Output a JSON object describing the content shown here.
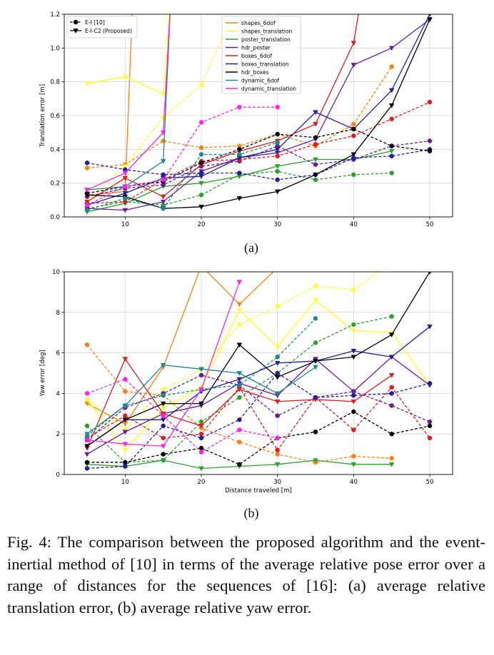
{
  "caption": "Fig. 4: The comparison between the proposed algorithm and the event-inertial method of [10] in terms of the average relative pose error over a range of distances for the sequences of [16]: (a) average relative translation error, (b) average relative yaw error.",
  "colors": {
    "shapes_6dof": "#ff7f0e",
    "shapes_translation": "#ffff33",
    "poster_translation": "#2ca02c",
    "hdr_poster": "#6a1b9a",
    "boxes_6dof": "#e41a1c",
    "boxes_translation": "#1f1f9f",
    "hdr_boxes": "#000000",
    "dynamic_6dof": "#1a8a8a",
    "dynamic_translation": "#ff22ee"
  },
  "chart_data": [
    {
      "id": "a",
      "type": "line",
      "sub_label": "(a)",
      "xlabel": "",
      "ylabel": "Translation error [m]",
      "xlim": [
        2,
        53
      ],
      "ylim": [
        0,
        1.2
      ],
      "xticks": [
        10,
        20,
        30,
        40,
        50
      ],
      "yticks": [
        0.0,
        0.2,
        0.4,
        0.6,
        0.8,
        1.0,
        1.2
      ],
      "grid": true,
      "method_legend": [
        "E-I [10]",
        "E-I-C2 (Proposed)"
      ],
      "sequence_legend": [
        "shapes_6dof",
        "shapes_translation",
        "poster_translation",
        "hdr_poster",
        "boxes_6dof",
        "boxes_translation",
        "hdr_boxes",
        "dynamic_6dof",
        "dynamic_translation"
      ],
      "series": [
        {
          "seq": "shapes_6dof",
          "method": "E-I [10]",
          "x": [
            5,
            10,
            15,
            20,
            25,
            30,
            35,
            40,
            45
          ],
          "y": [
            0.29,
            0.31,
            0.45,
            0.41,
            0.42,
            0.49,
            0.42,
            0.55,
            0.89
          ]
        },
        {
          "seq": "shapes_6dof",
          "method": "E-I-C2 (Proposed)",
          "x": [
            5,
            10,
            11
          ],
          "y": [
            0.13,
            0.15,
            1.3
          ]
        },
        {
          "seq": "shapes_translation",
          "method": "E-I [10]",
          "x": [
            5,
            10,
            15,
            20,
            25,
            30
          ],
          "y": [
            0.09,
            0.3,
            0.59,
            0.78,
            1.3,
            1.3
          ]
        },
        {
          "seq": "shapes_translation",
          "method": "E-I-C2 (Proposed)",
          "x": [
            5,
            10,
            15,
            16
          ],
          "y": [
            0.79,
            0.83,
            0.73,
            1.3
          ]
        },
        {
          "seq": "poster_translation",
          "method": "E-I [10]",
          "x": [
            5,
            10,
            15,
            20,
            25,
            30,
            35,
            40,
            45
          ],
          "y": [
            0.05,
            0.09,
            0.07,
            0.13,
            0.25,
            0.27,
            0.22,
            0.25,
            0.26
          ]
        },
        {
          "seq": "poster_translation",
          "method": "E-I-C2 (Proposed)",
          "x": [
            5,
            10,
            15,
            20,
            25,
            30,
            35,
            40,
            45
          ],
          "y": [
            0.03,
            0.08,
            0.18,
            0.2,
            0.24,
            0.3,
            0.34,
            0.34,
            0.39
          ]
        },
        {
          "seq": "hdr_poster",
          "method": "E-I [10]",
          "x": [
            5,
            10,
            15,
            20,
            25,
            30,
            35,
            40,
            45,
            50
          ],
          "y": [
            0.12,
            0.17,
            0.19,
            0.3,
            0.33,
            0.42,
            0.31,
            0.34,
            0.42,
            0.45
          ]
        },
        {
          "seq": "hdr_poster",
          "method": "E-I-C2 (Proposed)",
          "x": [
            5,
            10,
            15,
            20,
            25,
            30,
            35,
            40,
            45,
            50
          ],
          "y": [
            0.05,
            0.04,
            0.09,
            0.27,
            0.35,
            0.38,
            0.46,
            0.9,
            1.0,
            1.17
          ]
        },
        {
          "seq": "boxes_6dof",
          "method": "E-I [10]",
          "x": [
            5,
            10,
            15,
            20,
            25,
            30,
            35,
            40,
            45,
            50
          ],
          "y": [
            0.08,
            0.09,
            0.22,
            0.33,
            0.34,
            0.36,
            0.43,
            0.48,
            0.58,
            0.68
          ]
        },
        {
          "seq": "boxes_6dof",
          "method": "E-I-C2 (Proposed)",
          "x": [
            5,
            10,
            15,
            20,
            25,
            30,
            35,
            40,
            41
          ],
          "y": [
            0.09,
            0.23,
            0.12,
            0.31,
            0.39,
            0.45,
            0.55,
            1.03,
            1.3
          ]
        },
        {
          "seq": "boxes_translation",
          "method": "E-I [10]",
          "x": [
            5,
            10,
            15,
            20,
            25,
            30,
            35,
            40,
            45,
            50
          ],
          "y": [
            0.32,
            0.28,
            0.25,
            0.26,
            0.26,
            0.22,
            0.25,
            0.35,
            0.36,
            0.4
          ]
        },
        {
          "seq": "boxes_translation",
          "method": "E-I-C2 (Proposed)",
          "x": [
            5,
            10,
            15,
            20,
            25,
            30,
            35,
            40,
            45,
            50,
            51
          ],
          "y": [
            0.07,
            0.14,
            0.23,
            0.24,
            0.35,
            0.4,
            0.62,
            0.52,
            0.75,
            1.2,
            1.3
          ]
        },
        {
          "seq": "hdr_boxes",
          "method": "E-I [10]",
          "x": [
            5,
            10,
            15,
            20,
            25,
            30,
            35,
            40,
            45,
            50
          ],
          "y": [
            0.14,
            0.18,
            0.21,
            0.32,
            0.4,
            0.49,
            0.47,
            0.52,
            0.42,
            0.39
          ]
        },
        {
          "seq": "hdr_boxes",
          "method": "E-I-C2 (Proposed)",
          "x": [
            5,
            10,
            15,
            20,
            25,
            30,
            35,
            40,
            45,
            50
          ],
          "y": [
            0.13,
            0.12,
            0.05,
            0.06,
            0.11,
            0.15,
            0.25,
            0.37,
            0.66,
            1.17
          ]
        },
        {
          "seq": "dynamic_6dof",
          "method": "E-I [10]",
          "x": [
            5,
            10,
            15,
            20,
            25,
            30
          ],
          "y": [
            0.04,
            0.11,
            0.05,
            0.37,
            0.37,
            0.44
          ]
        },
        {
          "seq": "dynamic_6dof",
          "method": "E-I-C2 (Proposed)",
          "x": [
            5,
            10,
            15,
            16
          ],
          "y": [
            0.16,
            0.18,
            0.33,
            1.3
          ]
        },
        {
          "seq": "dynamic_translation",
          "method": "E-I [10]",
          "x": [
            5,
            10,
            15,
            20,
            25,
            30
          ],
          "y": [
            0.07,
            0.18,
            0.22,
            0.56,
            0.65,
            0.65
          ]
        },
        {
          "seq": "dynamic_translation",
          "method": "E-I-C2 (Proposed)",
          "x": [
            5,
            10,
            15,
            16
          ],
          "y": [
            0.16,
            0.26,
            0.5,
            1.3
          ]
        }
      ]
    },
    {
      "id": "b",
      "type": "line",
      "sub_label": "(b)",
      "xlabel": "Distance traveled [m]",
      "ylabel": "Yaw error [deg]",
      "xlim": [
        2,
        53
      ],
      "ylim": [
        0,
        10
      ],
      "xticks": [
        10,
        20,
        30,
        40,
        50
      ],
      "yticks": [
        0,
        2,
        4,
        6,
        8,
        10
      ],
      "grid": true,
      "series": [
        {
          "seq": "shapes_6dof",
          "method": "E-I [10]",
          "x": [
            5,
            10,
            15,
            20,
            25,
            30,
            35,
            40,
            45
          ],
          "y": [
            6.4,
            4.1,
            3.9,
            2.3,
            1.6,
            1.0,
            0.6,
            0.9,
            0.8
          ]
        },
        {
          "seq": "shapes_6dof",
          "method": "E-I-C2 (Proposed)",
          "x": [
            5,
            10,
            15,
            20,
            25,
            30,
            31
          ],
          "y": [
            3.5,
            2.5,
            5.3,
            10.3,
            8.4,
            10.2,
            11
          ]
        },
        {
          "seq": "shapes_translation",
          "method": "E-I [10]",
          "x": [
            5,
            10,
            15,
            20,
            25,
            30,
            35,
            40,
            45
          ],
          "y": [
            3.7,
            2.2,
            4.2,
            5.2,
            7.4,
            8.3,
            9.3,
            9.1,
            10.5
          ]
        },
        {
          "seq": "shapes_translation",
          "method": "E-I-C2 (Proposed)",
          "x": [
            5,
            10,
            15,
            20,
            25,
            30,
            35,
            40,
            45,
            50
          ],
          "y": [
            3.7,
            1.2,
            3.3,
            4.3,
            8.1,
            6.3,
            8.6,
            7.1,
            7.0,
            4.4
          ]
        },
        {
          "seq": "poster_translation",
          "method": "E-I [10]",
          "x": [
            5,
            10,
            15,
            20,
            25,
            30,
            35,
            40,
            45
          ],
          "y": [
            2.4,
            0.6,
            0.7,
            2.6,
            3.8,
            5.0,
            6.5,
            7.4,
            7.8
          ]
        },
        {
          "seq": "poster_translation",
          "method": "E-I-C2 (Proposed)",
          "x": [
            5,
            10,
            15,
            20,
            25,
            30,
            35,
            40,
            45
          ],
          "y": [
            0.5,
            0.4,
            0.7,
            0.3,
            0.4,
            0.5,
            0.7,
            0.5,
            0.5
          ]
        },
        {
          "seq": "hdr_poster",
          "method": "E-I [10]",
          "x": [
            5,
            10,
            15,
            20,
            25,
            30,
            35,
            40,
            45,
            50
          ],
          "y": [
            1.7,
            3.3,
            4.0,
            4.9,
            4.4,
            2.9,
            3.8,
            4.1,
            3.4,
            2.6
          ]
        },
        {
          "seq": "hdr_poster",
          "method": "E-I-C2 (Proposed)",
          "x": [
            5,
            10,
            15,
            20,
            25,
            30,
            35,
            40,
            45,
            50
          ],
          "y": [
            1.0,
            2.1,
            3.0,
            3.4,
            4.5,
            3.9,
            5.7,
            4.1,
            5.8,
            4.4
          ]
        },
        {
          "seq": "boxes_6dof",
          "method": "E-I [10]",
          "x": [
            5,
            10,
            15,
            20,
            25,
            30,
            35,
            40,
            45,
            50
          ],
          "y": [
            1.8,
            2.9,
            1.8,
            2.0,
            4.3,
            1.2,
            3.8,
            2.2,
            4.3,
            1.8
          ]
        },
        {
          "seq": "boxes_6dof",
          "method": "E-I-C2 (Proposed)",
          "x": [
            5,
            10,
            15,
            20,
            25,
            30,
            35,
            40,
            45
          ],
          "y": [
            1.3,
            5.7,
            3.0,
            2.4,
            4.2,
            3.6,
            3.7,
            3.6,
            4.9
          ]
        },
        {
          "seq": "boxes_translation",
          "method": "E-I [10]",
          "x": [
            5,
            10,
            15,
            20,
            25,
            30,
            35,
            40,
            45,
            50
          ],
          "y": [
            0.3,
            0.4,
            2.4,
            1.8,
            2.7,
            5.0,
            3.8,
            3.9,
            4.0,
            4.5
          ]
        },
        {
          "seq": "boxes_translation",
          "method": "E-I-C2 (Proposed)",
          "x": [
            5,
            10,
            15,
            20,
            25,
            30,
            35,
            40,
            45,
            50
          ],
          "y": [
            1.4,
            2.7,
            2.7,
            4.1,
            4.7,
            5.5,
            5.6,
            6.1,
            5.8,
            7.3
          ]
        },
        {
          "seq": "hdr_boxes",
          "method": "E-I [10]",
          "x": [
            5,
            10,
            15,
            20,
            25,
            30,
            35,
            40,
            45,
            50
          ],
          "y": [
            0.6,
            0.6,
            1.0,
            1.3,
            0.5,
            1.8,
            2.1,
            3.1,
            2.0,
            2.4
          ]
        },
        {
          "seq": "hdr_boxes",
          "method": "E-I-C2 (Proposed)",
          "x": [
            5,
            10,
            15,
            20,
            25,
            30,
            35,
            40,
            45,
            50,
            51
          ],
          "y": [
            1.4,
            2.7,
            3.5,
            3.5,
            6.4,
            4.8,
            5.6,
            5.8,
            6.9,
            10.0,
            11
          ]
        },
        {
          "seq": "dynamic_6dof",
          "method": "E-I [10]",
          "x": [
            5,
            10,
            15,
            20,
            25,
            30,
            35
          ],
          "y": [
            1.9,
            3.4,
            3.9,
            4.2,
            4.4,
            5.8,
            7.7
          ]
        },
        {
          "seq": "dynamic_6dof",
          "method": "E-I-C2 (Proposed)",
          "x": [
            5,
            10,
            15,
            20,
            25,
            30,
            35
          ],
          "y": [
            2.0,
            3.4,
            5.4,
            5.2,
            5.0,
            4.0,
            5.3
          ]
        },
        {
          "seq": "dynamic_translation",
          "method": "E-I [10]",
          "x": [
            5,
            10,
            15,
            20,
            25,
            30
          ],
          "y": [
            4.0,
            4.7,
            2.9,
            1.1,
            2.2,
            1.8
          ]
        },
        {
          "seq": "dynamic_translation",
          "method": "E-I-C2 (Proposed)",
          "x": [
            5,
            10,
            15,
            20,
            25
          ],
          "y": [
            1.7,
            1.5,
            1.4,
            4.2,
            9.5
          ]
        }
      ]
    }
  ]
}
